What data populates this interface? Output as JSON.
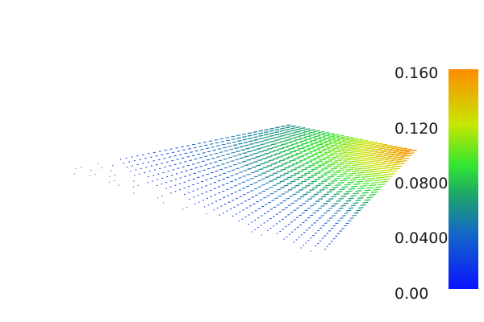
{
  "colorbar": {
    "range": [
      0.0,
      0.16
    ],
    "ticks": [
      {
        "label": "0.160",
        "value": 0.16
      },
      {
        "label": "0.120",
        "value": 0.12
      },
      {
        "label": "0.0800",
        "value": 0.08
      },
      {
        "label": "0.0400",
        "value": 0.04
      },
      {
        "label": "0.00",
        "value": 0.0
      }
    ],
    "colormap": [
      {
        "value": 0.0,
        "color": "#0a14ff"
      },
      {
        "value": 0.04,
        "color": "#1466c8"
      },
      {
        "value": 0.07,
        "color": "#1eaa64"
      },
      {
        "value": 0.09,
        "color": "#32e632"
      },
      {
        "value": 0.12,
        "color": "#c8e600"
      },
      {
        "value": 0.16,
        "color": "#ff8c00"
      }
    ]
  },
  "field": {
    "type": "vector-glyph-field",
    "rows": 26,
    "cols": 40,
    "max_magnitude": 0.16,
    "hot_corner": "right"
  }
}
